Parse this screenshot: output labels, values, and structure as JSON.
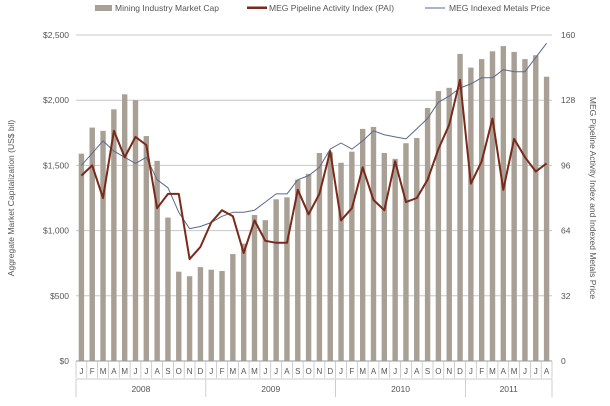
{
  "chart_data": {
    "type": "bar",
    "legend": [
      {
        "name": "Mining Industry Market Cap",
        "kind": "bar"
      },
      {
        "name": "MEG Pipeline Activity Index (PAI)",
        "kind": "line"
      },
      {
        "name": "MEG Indexed Metals Price",
        "kind": "line"
      }
    ],
    "legend_position": "top",
    "ylabel": "Aggregate Market Capitalization (US$ bil)",
    "y2label": "MEG Pipeline Activity Index and Indexed Metals Price",
    "ylim": [
      0,
      2500
    ],
    "y2lim": [
      0,
      160
    ],
    "yticks": [
      "$0",
      "$500",
      "$1,000",
      "$1,500",
      "$2,000",
      "$2,500"
    ],
    "y2ticks": [
      "0",
      "32",
      "64",
      "96",
      "128",
      "160"
    ],
    "grid": true,
    "months": [
      "J",
      "F",
      "M",
      "A",
      "M",
      "J",
      "J",
      "A",
      "S",
      "O",
      "N",
      "D",
      "J",
      "F",
      "M",
      "A",
      "M",
      "J",
      "J",
      "A",
      "S",
      "O",
      "N",
      "D",
      "J",
      "F",
      "M",
      "A",
      "M",
      "J",
      "J",
      "A",
      "S",
      "O",
      "N",
      "D",
      "J",
      "F",
      "M",
      "A",
      "M",
      "J",
      "J",
      "A"
    ],
    "years": [
      {
        "label": "2008",
        "months": 12
      },
      {
        "label": "2009",
        "months": 12
      },
      {
        "label": "2010",
        "months": 12
      },
      {
        "label": "2011",
        "months": 8
      }
    ],
    "series": [
      {
        "name": "Mining Industry Market Cap",
        "axis": "left",
        "color": "#a89f95",
        "values": [
          1590,
          1790,
          1765,
          1930,
          2045,
          2000,
          1725,
          1535,
          1100,
          685,
          650,
          720,
          700,
          690,
          820,
          900,
          1120,
          1080,
          1240,
          1255,
          1390,
          1435,
          1595,
          1600,
          1520,
          1605,
          1780,
          1795,
          1595,
          1550,
          1670,
          1710,
          1940,
          2070,
          2095,
          2355,
          2250,
          2315,
          2375,
          2415,
          2370,
          2315,
          2345,
          2180
        ]
      },
      {
        "name": "MEG Pipeline Activity Index (PAI)",
        "axis": "right",
        "color": "#7a2a1a",
        "values": [
          91,
          96,
          80,
          113,
          100,
          110,
          106,
          75,
          82,
          82,
          50,
          56,
          68,
          74,
          71,
          53,
          69,
          59,
          58,
          58,
          84,
          72,
          82,
          103,
          69,
          75,
          95,
          79,
          74,
          98,
          78,
          80,
          89,
          104,
          116,
          138,
          87,
          98,
          119,
          84,
          109,
          100,
          93,
          97
        ]
      },
      {
        "name": "MEG Indexed Metals Price",
        "axis": "right",
        "color": "#5a6a8a",
        "values": [
          96,
          102,
          108,
          103,
          100,
          97,
          100,
          89,
          85,
          73,
          65,
          66,
          68,
          71,
          73,
          73,
          74,
          78,
          82,
          82,
          89,
          91,
          95,
          104,
          107,
          104,
          108,
          113,
          111,
          110,
          109,
          114,
          119,
          127,
          130,
          134,
          136,
          139,
          139,
          143,
          142,
          142,
          149,
          156
        ]
      }
    ]
  }
}
